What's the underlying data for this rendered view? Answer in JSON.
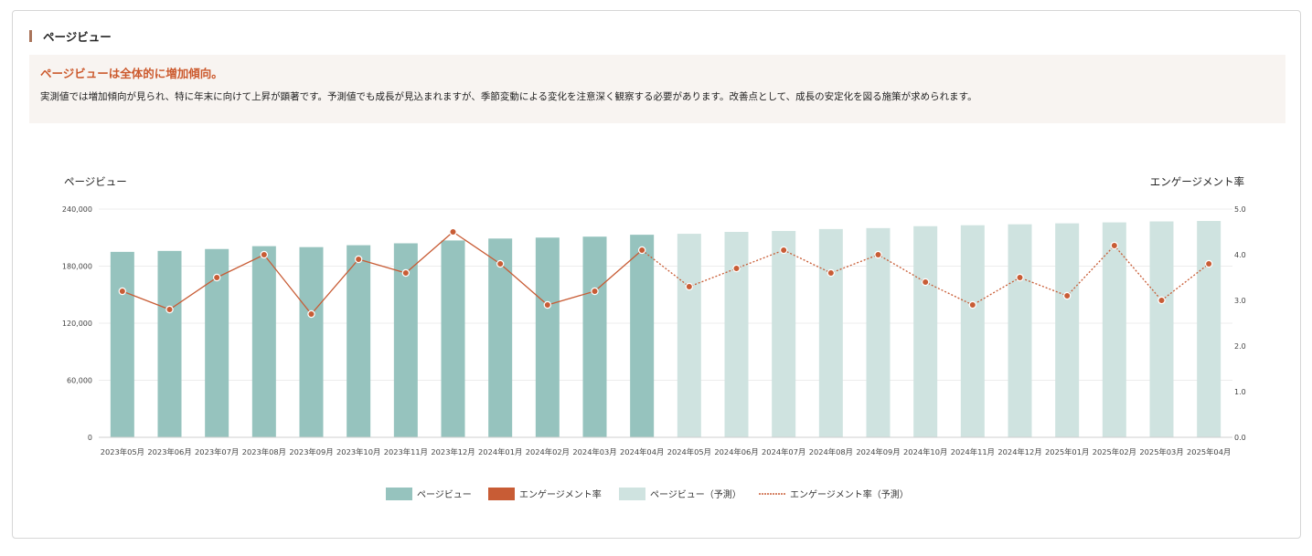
{
  "section": {
    "title": "ページビュー"
  },
  "summary": {
    "headline": "ページビューは全体的に増加傾向。",
    "body": "実測値では増加傾向が見られ、特に年末に向けて上昇が顕著です。予測値でも成長が見込まれますが、季節変動による変化を注意深く観察する必要があります。改善点として、成長の安定化を図る施策が求められます。"
  },
  "colors": {
    "bar_actual": "#96c3be",
    "bar_forecast": "#cfe3e0",
    "line": "#c85c35",
    "grid": "#ececec",
    "axis_text": "#444444"
  },
  "chart_data": {
    "type": "bar",
    "y_left_label": "ページビュー",
    "y_right_label": "エンゲージメント率",
    "y_left_ticks": [
      "0",
      "60,000",
      "120,000",
      "180,000",
      "240,000"
    ],
    "y_left_ticks_values": [
      0,
      60000,
      120000,
      180000,
      240000
    ],
    "y_right_ticks": [
      "0.0",
      "1.0",
      "2.0",
      "3.0",
      "4.0",
      "5.0"
    ],
    "y_right_ticks_values": [
      0,
      1,
      2,
      3,
      4,
      5
    ],
    "y_left_lim": [
      0,
      240000
    ],
    "y_right_lim": [
      0,
      5
    ],
    "categories": [
      "2023年05月",
      "2023年06月",
      "2023年07月",
      "2023年08月",
      "2023年09月",
      "2023年10月",
      "2023年11月",
      "2023年12月",
      "2024年01月",
      "2024年02月",
      "2024年03月",
      "2024年04月",
      "2024年05月",
      "2024年06月",
      "2024年07月",
      "2024年08月",
      "2024年09月",
      "2024年10月",
      "2024年11月",
      "2024年12月",
      "2025年01月",
      "2025年02月",
      "2025年03月",
      "2025年04月"
    ],
    "forecast_start_index": 12,
    "pageviews": [
      195000,
      196000,
      198000,
      201000,
      200000,
      202000,
      204000,
      207000,
      209000,
      210000,
      211000,
      213000,
      214000,
      216000,
      217000,
      219000,
      220000,
      222000,
      223000,
      224000,
      225000,
      226000,
      227000,
      227500
    ],
    "engagement": [
      3.2,
      2.8,
      3.5,
      4.0,
      2.7,
      3.9,
      3.6,
      4.5,
      3.8,
      2.9,
      3.2,
      4.1,
      3.3,
      3.7,
      4.1,
      3.6,
      4.0,
      3.4,
      2.9,
      3.5,
      3.1,
      4.2,
      3.0,
      3.8
    ],
    "grid": true,
    "legend_position": "bottom",
    "legend": [
      "ページビュー",
      "エンゲージメント率",
      "ページビュー（予測）",
      "エンゲージメント率（予測）"
    ]
  }
}
